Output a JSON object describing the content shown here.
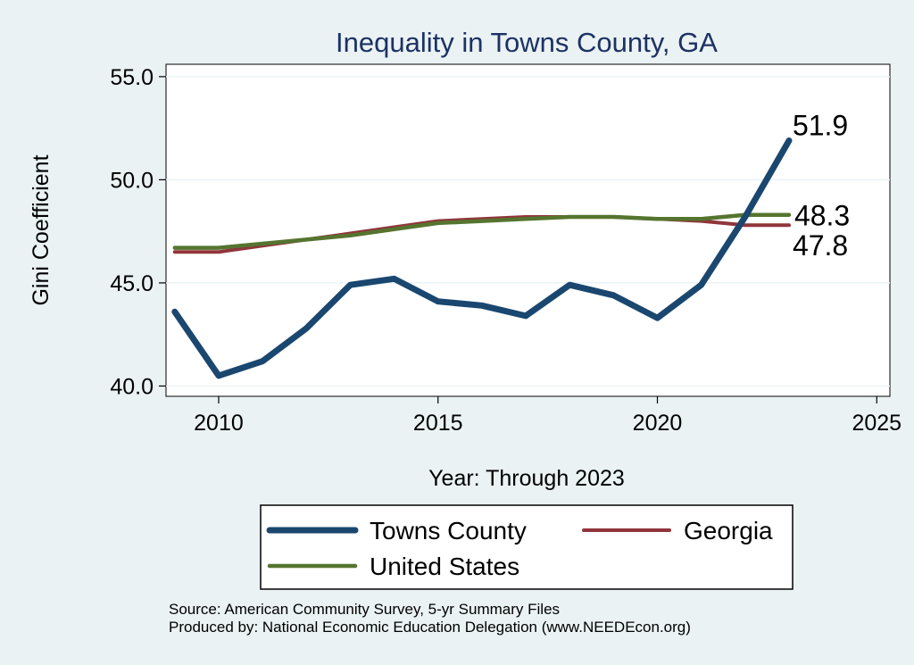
{
  "chart_data": {
    "type": "line",
    "title": "Inequality in Towns County, GA",
    "xlabel": "Year: Through 2023",
    "ylabel": "Gini Coefficient",
    "xlim": [
      2008.8,
      2025.3
    ],
    "ylim": [
      39.5,
      55.6
    ],
    "x_ticks": [
      "2010",
      "2015",
      "2020",
      "2025"
    ],
    "x_tick_values": [
      2010,
      2015,
      2020,
      2025
    ],
    "y_ticks": [
      "40.0",
      "45.0",
      "50.0",
      "55.0"
    ],
    "y_tick_values": [
      40,
      45,
      50,
      55
    ],
    "grid": true,
    "legend_position": "bottom",
    "series": [
      {
        "name": "Towns County",
        "color": "#1a476f",
        "end_label": "51.9",
        "x": [
          2009,
          2010,
          2011,
          2012,
          2013,
          2014,
          2015,
          2016,
          2017,
          2018,
          2019,
          2020,
          2021,
          2022,
          2023
        ],
        "y": [
          43.6,
          40.5,
          41.2,
          42.8,
          44.9,
          45.2,
          44.1,
          43.9,
          43.4,
          44.9,
          44.4,
          43.3,
          44.9,
          48.2,
          51.9
        ]
      },
      {
        "name": "Georgia",
        "color": "#90353b",
        "end_label": "47.8",
        "x": [
          2009,
          2010,
          2011,
          2012,
          2013,
          2014,
          2015,
          2016,
          2017,
          2018,
          2019,
          2020,
          2021,
          2022,
          2023
        ],
        "y": [
          46.5,
          46.5,
          46.8,
          47.1,
          47.4,
          47.7,
          48.0,
          48.1,
          48.2,
          48.2,
          48.2,
          48.1,
          48.0,
          47.8,
          47.8
        ]
      },
      {
        "name": "United States",
        "color": "#55752f",
        "end_label": "48.3",
        "x": [
          2009,
          2010,
          2011,
          2012,
          2013,
          2014,
          2015,
          2016,
          2017,
          2018,
          2019,
          2020,
          2021,
          2022,
          2023
        ],
        "y": [
          46.7,
          46.7,
          46.9,
          47.1,
          47.3,
          47.6,
          47.9,
          48.0,
          48.1,
          48.2,
          48.2,
          48.1,
          48.1,
          48.3,
          48.3
        ]
      }
    ]
  },
  "source": {
    "line1": "Source: American Community Survey, 5-yr Summary Files",
    "line2": "Produced by: National Economic Education Delegation (www.NEEDEcon.org)"
  }
}
